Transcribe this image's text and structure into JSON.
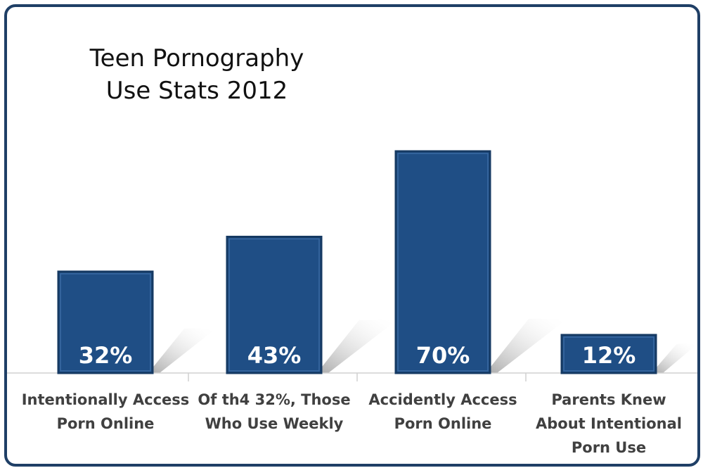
{
  "chart_data": {
    "type": "bar",
    "title": [
      "Teen Pornography",
      "Use Stats 2012"
    ],
    "categories": [
      [
        "Intentionally Access",
        "Porn Online"
      ],
      [
        "Of th4 32%, Those",
        "Who Use Weekly"
      ],
      [
        "Accidently Access",
        "Porn Online"
      ],
      [
        "Parents Knew",
        "About Intentional",
        "Porn Use"
      ]
    ],
    "values": [
      32,
      43,
      70,
      12
    ],
    "data_labels": [
      "32%",
      "43%",
      "70%",
      "12%"
    ],
    "ylim": [
      0,
      100
    ],
    "grid": false,
    "legend": "none",
    "xlabel": "",
    "ylabel": ""
  },
  "colors": {
    "bar": "#1f4e85",
    "bar_edge": "#163a63",
    "frame": "#1f3f66",
    "axis": "#d0d0d0",
    "shadow": "#bdbdbd"
  }
}
